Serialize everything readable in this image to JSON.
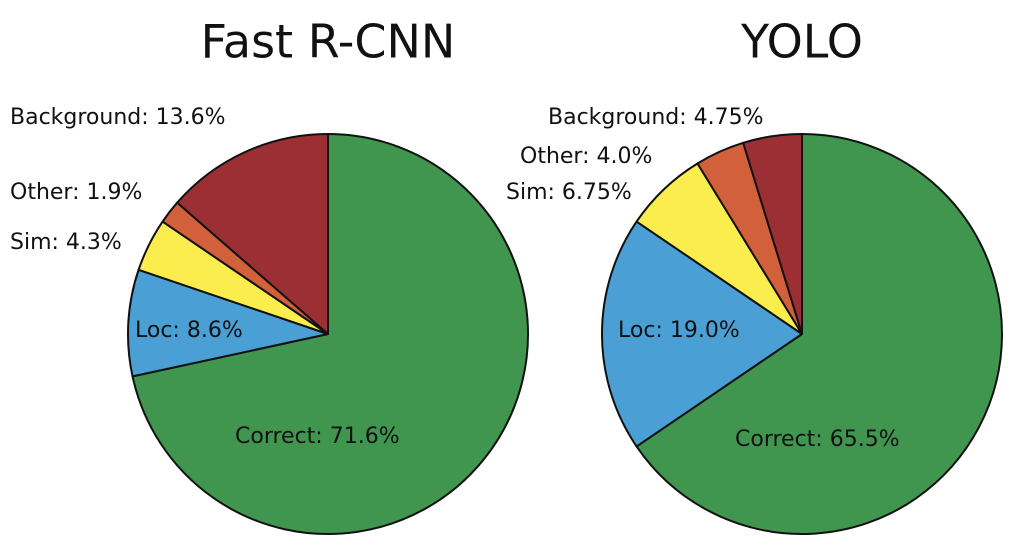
{
  "chart_data": [
    {
      "type": "pie",
      "title": "Fast R-CNN",
      "values": [
        71.6,
        8.6,
        4.3,
        1.9,
        13.6
      ],
      "value_labels": [
        "Correct: 71.6%",
        "Loc: 8.6%",
        "Sim: 4.3%",
        "Other: 1.9%",
        "Background: 13.6%"
      ],
      "colors": [
        "#41964f",
        "#4aa0d5",
        "#fbed4d",
        "#d2603a",
        "#9b2f34"
      ]
    },
    {
      "type": "pie",
      "title": "YOLO",
      "values": [
        65.5,
        19.0,
        6.75,
        4.0,
        4.75
      ],
      "value_labels": [
        "Correct: 65.5%",
        "Loc: 19.0%",
        "Sim: 6.75%",
        "Other: 4.0%",
        "Background: 4.75%"
      ],
      "colors": [
        "#41964f",
        "#4aa0d5",
        "#fbed4d",
        "#d2603a",
        "#9b2f34"
      ]
    }
  ]
}
